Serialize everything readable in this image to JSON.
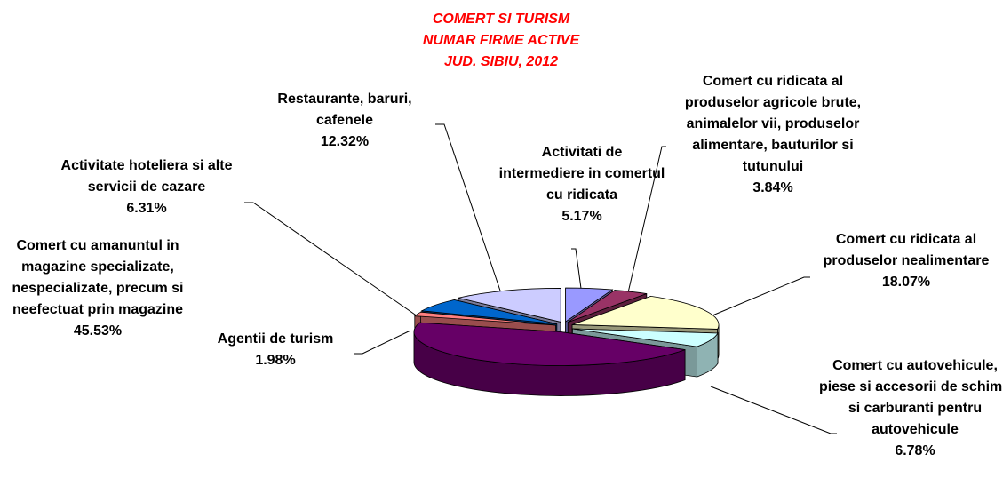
{
  "chart_data": {
    "type": "pie3d",
    "title": [
      "COMERT SI TURISM",
      "NUMAR FIRME ACTIVE",
      "JUD. SIBIU, 2012"
    ],
    "categories": [
      "Activitati de intermediere in comertul cu ridicata",
      "Comert cu ridicata al produselor agricole brute, animalelor vii, produselor alimentare, bauturilor si tutunului",
      "Comert cu ridicata al produselor nealimentare",
      "Comert cu autovehicule, piese si accesorii de schimb si carburanti pentru autovehicule",
      "Comert cu amanuntul in magazine specializate, nespecializate, precum si neefectuat prin magazine",
      "Agentii de turism",
      "Activitate hoteliera si alte servicii de cazare",
      "Restaurante, baruri, cafenele"
    ],
    "values": [
      5.17,
      3.84,
      18.07,
      6.78,
      45.53,
      1.98,
      6.31,
      12.32
    ],
    "value_labels": [
      "5.17%",
      "3.84%",
      "18.07%",
      "6.78%",
      "45.53%",
      "1.98%",
      "6.31%",
      "12.32%"
    ],
    "colors": [
      "#9999ff",
      "#993366",
      "#ffffcc",
      "#ccffff",
      "#660066",
      "#ff8080",
      "#0066cc",
      "#ccccff"
    ]
  }
}
